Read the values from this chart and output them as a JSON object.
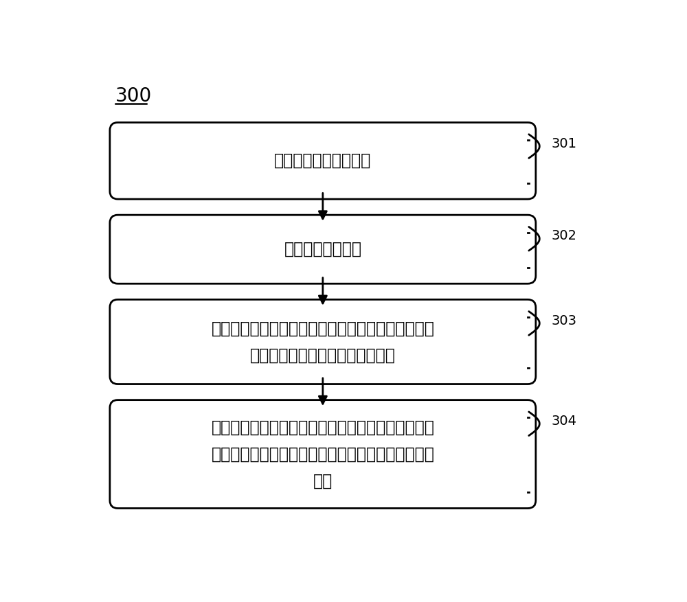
{
  "title_label": "300",
  "boxes": [
    {
      "id": "301",
      "label": "获取量子门的位置信息",
      "tag": "301",
      "lines": 1
    },
    {
      "id": "302",
      "label": "获取量子门的类型",
      "tag": "302",
      "lines": 1
    },
    {
      "id": "303",
      "label": "基于该量子门的位置信息，确定对应等价的子测量模\n式的所述输入节点和所述输出节点",
      "tag": "303",
      "lines": 2
    },
    {
      "id": "304",
      "label": "基于该量子门的类型，确定与该量子门对应等价的子\n测量模式中的所述多个操作命令的类型、数量和组合\n方式",
      "tag": "304",
      "lines": 3
    }
  ],
  "box_color": "#ffffff",
  "box_edge_color": "#000000",
  "arrow_color": "#000000",
  "text_color": "#000000",
  "background_color": "#ffffff",
  "font_size": 17,
  "tag_font_size": 14,
  "title_font_size": 20
}
